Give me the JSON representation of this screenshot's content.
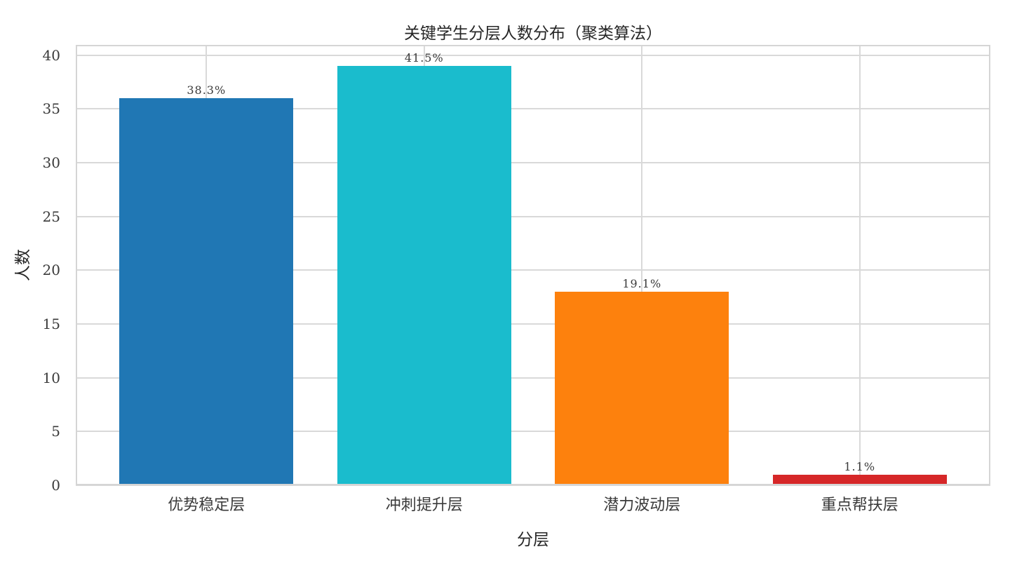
{
  "chart_data": {
    "type": "bar",
    "title": "关键学生分层人数分布（聚类算法）",
    "xlabel": "分层",
    "ylabel": "人数",
    "categories": [
      "优势稳定层",
      "冲刺提升层",
      "潜力波动层",
      "重点帮扶层"
    ],
    "values": [
      36,
      39,
      18,
      1
    ],
    "bar_labels": [
      "38.3%",
      "41.5%",
      "19.1%",
      "1.1%"
    ],
    "bar_colors": [
      "#2077b4",
      "#1abccd",
      "#fd810d",
      "#d62728"
    ],
    "ylim": [
      0,
      40.95
    ],
    "xlim": [
      -0.6,
      3.6
    ],
    "yticks": [
      0,
      5,
      10,
      15,
      20,
      25,
      30,
      35,
      40
    ],
    "bar_width": 0.8,
    "grid": true,
    "grid_color": "#d9d9d9",
    "frame_color": "#d5d5d5",
    "text_color": "#3a3a3a",
    "legend_position": "none"
  }
}
